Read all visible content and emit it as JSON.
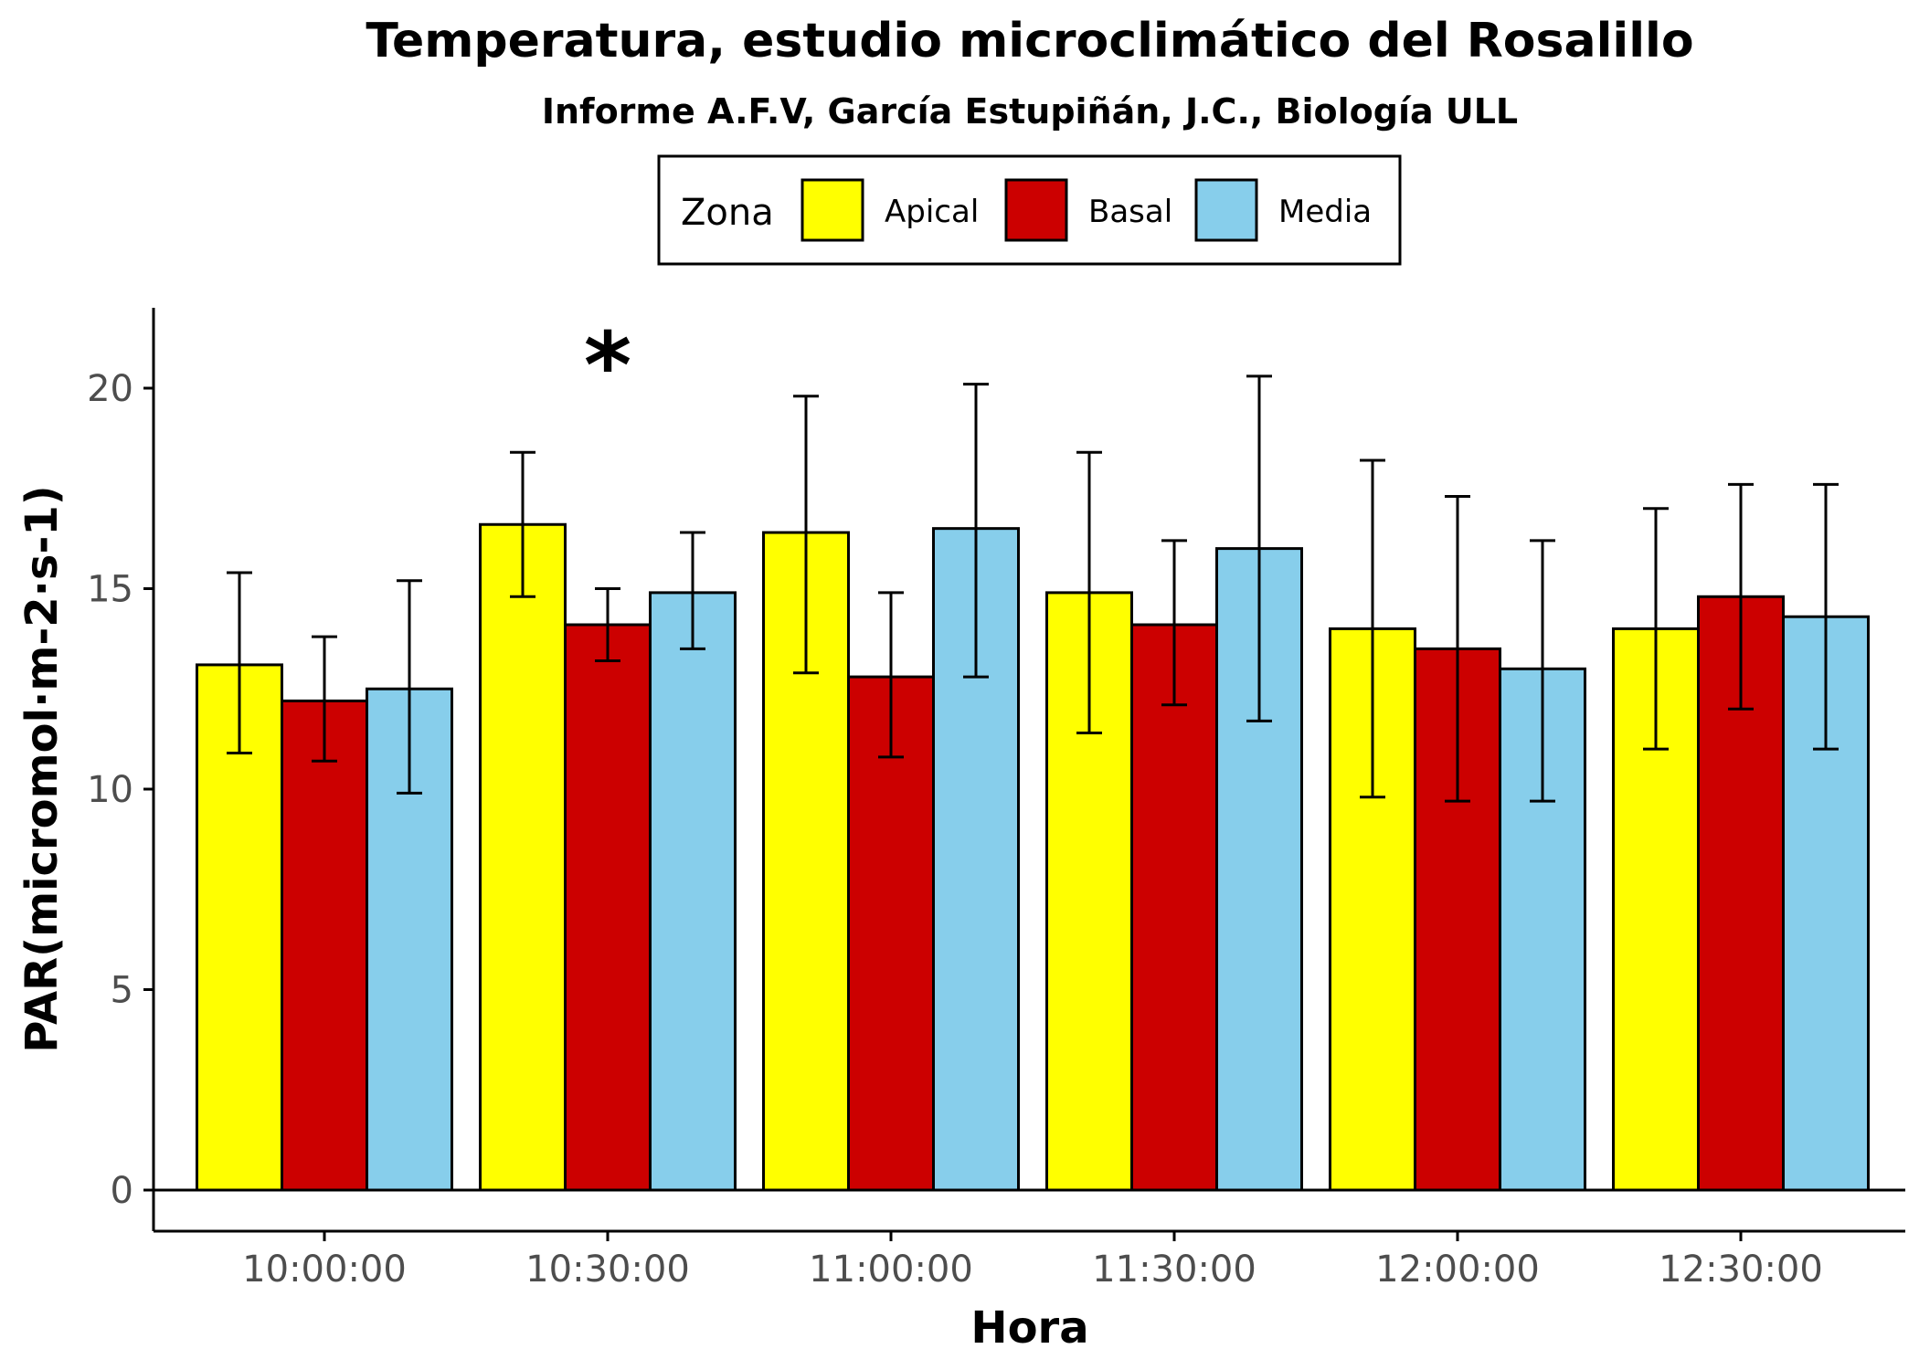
{
  "chart_data": {
    "type": "bar",
    "title": "Temperatura, estudio microclimático del Rosalillo",
    "subtitle": "Informe A.F.V, García Estupiñán, J.C., Biología ULL",
    "xlabel": "Hora",
    "ylabel": "PAR(micromol·m-2·s-1)",
    "ylim": [
      0,
      22
    ],
    "yticks": [
      0,
      5,
      10,
      15,
      20
    ],
    "grid": false,
    "legend": {
      "title": "Zona",
      "position": "top"
    },
    "categories": [
      "10:00:00",
      "10:30:00",
      "11:00:00",
      "11:30:00",
      "12:00:00",
      "12:30:00"
    ],
    "series": [
      {
        "name": "Apical",
        "color": "#FFFF00",
        "values": [
          13.1,
          16.6,
          16.4,
          14.9,
          14.0,
          14.0
        ],
        "err_low": [
          10.9,
          14.8,
          12.9,
          11.4,
          9.8,
          11.0
        ],
        "err_high": [
          15.4,
          18.4,
          19.8,
          18.4,
          18.2,
          17.0
        ]
      },
      {
        "name": "Basal",
        "color": "#CC0000",
        "values": [
          12.2,
          14.1,
          12.8,
          14.1,
          13.5,
          14.8
        ],
        "err_low": [
          10.7,
          13.2,
          10.8,
          12.1,
          9.7,
          12.0
        ],
        "err_high": [
          13.8,
          15.0,
          14.9,
          16.2,
          17.3,
          17.6
        ]
      },
      {
        "name": "Media",
        "color": "#87CEEB",
        "values": [
          12.5,
          14.9,
          16.5,
          16.0,
          13.0,
          14.3
        ],
        "err_low": [
          9.9,
          13.5,
          12.8,
          11.7,
          9.7,
          11.0
        ],
        "err_high": [
          15.2,
          16.4,
          20.1,
          20.3,
          16.2,
          17.6
        ]
      }
    ],
    "annotations": [
      {
        "text": "*",
        "category": "10:30:00",
        "y": 20.8
      }
    ]
  }
}
